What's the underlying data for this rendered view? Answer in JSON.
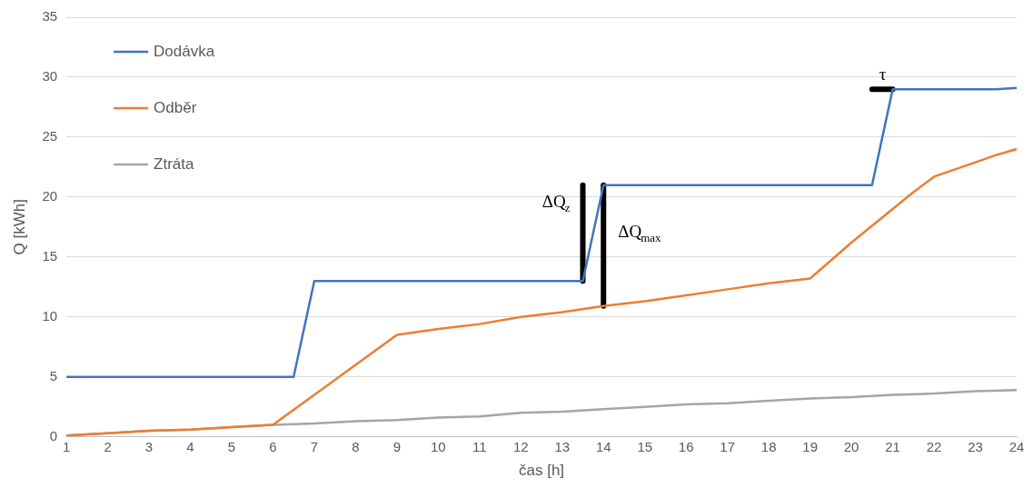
{
  "chart_data": {
    "type": "line",
    "xlabel": "čas [h]",
    "ylabel": "Q [kWh]",
    "xlim": [
      1,
      24
    ],
    "xticks": [
      1,
      2,
      3,
      4,
      5,
      6,
      7,
      8,
      9,
      10,
      11,
      12,
      13,
      14,
      15,
      16,
      17,
      18,
      19,
      20,
      21,
      22,
      23,
      24
    ],
    "ylim": [
      0,
      35
    ],
    "yticks": [
      0,
      5,
      10,
      15,
      20,
      25,
      30,
      35
    ],
    "grid": "y",
    "legend": "top left",
    "marker": "none",
    "line_style": "solid",
    "series": [
      {
        "name": "Dodávka",
        "color": "#4472c4",
        "x": [
          1,
          6.5,
          7,
          13.5,
          14,
          20.5,
          21,
          23.5,
          24
        ],
        "values": [
          5,
          5,
          13,
          13,
          21,
          21,
          29,
          29,
          29.1
        ]
      },
      {
        "name": "Odběr",
        "color": "#ed7d31",
        "x": [
          1,
          2,
          3,
          4,
          5,
          6,
          7,
          8,
          9,
          10,
          11,
          12,
          13,
          14,
          15,
          16,
          17,
          18,
          19,
          20,
          21,
          21.5,
          22,
          23,
          23.5,
          24
        ],
        "values": [
          0.1,
          0.3,
          0.5,
          0.6,
          0.8,
          1.0,
          3.5,
          6.0,
          8.5,
          9.0,
          9.4,
          10.0,
          10.4,
          10.9,
          11.3,
          11.8,
          12.3,
          12.8,
          13.2,
          16.2,
          19.0,
          20.4,
          21.7,
          22.9,
          23.5,
          24.0
        ]
      },
      {
        "name": "Ztráta",
        "color": "#a5a5a5",
        "x": [
          1,
          2,
          3,
          4,
          5,
          6,
          7,
          8,
          9,
          10,
          11,
          12,
          13,
          14,
          15,
          16,
          17,
          18,
          19,
          20,
          21,
          22,
          23,
          24
        ],
        "values": [
          0.1,
          0.3,
          0.5,
          0.6,
          0.8,
          1.0,
          1.1,
          1.3,
          1.4,
          1.6,
          1.7,
          2.0,
          2.1,
          2.3,
          2.5,
          2.7,
          2.8,
          3.0,
          3.2,
          3.3,
          3.5,
          3.6,
          3.8,
          3.9
        ]
      },
      {
        "color": "#000000",
        "x": [
          13.5,
          13.5
        ],
        "values": [
          13,
          21
        ]
      },
      {
        "color": "#000000",
        "x": [
          14,
          14
        ],
        "values": [
          10.9,
          21
        ]
      },
      {
        "color": "#000000",
        "x": [
          20.5,
          21
        ],
        "values": [
          29,
          29
        ]
      }
    ],
    "annotations": [
      {
        "text": "ΔQ$_{z}$",
        "x": 13.5,
        "y": 19.5
      },
      {
        "text": "ΔQ$_{max}$",
        "x": 14,
        "y": 17
      },
      {
        "text": "τ",
        "x": 20.75,
        "y": 29
      }
    ]
  }
}
